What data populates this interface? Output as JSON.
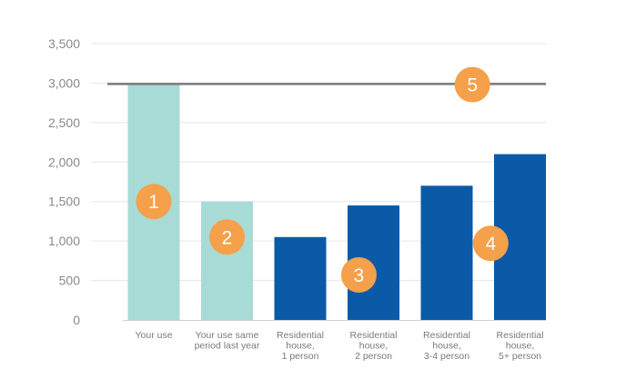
{
  "chart_data": {
    "type": "bar",
    "categories": [
      [
        "Your use"
      ],
      [
        "Your use same",
        "period last year"
      ],
      [
        "Residential",
        "house,",
        "1 person"
      ],
      [
        "Residential",
        "house,",
        "2 person"
      ],
      [
        "Residential",
        "house,",
        "3-4 person"
      ],
      [
        "Residential",
        "house,",
        "5+ person"
      ]
    ],
    "values": [
      3000,
      1500,
      1050,
      1450,
      1700,
      2100
    ],
    "colors": [
      "#a8dbd6",
      "#a8dbd6",
      "#0b5aa8",
      "#0b5aa8",
      "#0b5aa8",
      "#0b5aa8"
    ],
    "ylim": [
      0,
      3500
    ],
    "yticks": [
      0,
      500,
      1000,
      1500,
      2000,
      2500,
      3000,
      3500
    ],
    "ytick_labels": [
      "0",
      "500",
      "1,000",
      "1,500",
      "2,000",
      "2,500",
      "3,000",
      "3,500"
    ],
    "grid": true,
    "reference_line": {
      "value": 3000,
      "color": "#7a7a7a"
    },
    "markers": [
      {
        "label": "1",
        "category_index": 0,
        "value": 1500
      },
      {
        "label": "2",
        "category_index": 1,
        "value": 1050
      },
      {
        "label": "3",
        "category_index": 2.8,
        "value": 570
      },
      {
        "label": "4",
        "category_index": 4.6,
        "value": 970
      },
      {
        "label": "5",
        "category_index": 4.35,
        "value": 2980
      }
    ],
    "marker_color": "#f5a04a",
    "title": "",
    "xlabel": "",
    "ylabel": ""
  }
}
